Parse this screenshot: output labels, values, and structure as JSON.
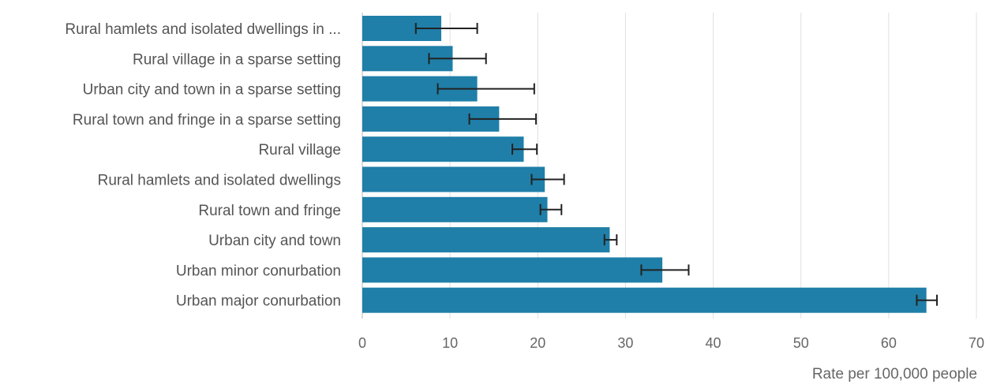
{
  "chart_data": {
    "type": "bar",
    "orientation": "horizontal",
    "categories": [
      "Rural hamlets and isolated dwellings in ...",
      "Rural village in a sparse setting",
      "Urban city and town in a sparse setting",
      "Rural town and fringe in a sparse setting",
      "Rural village",
      "Rural hamlets and isolated dwellings",
      "Rural town and fringe",
      "Urban city and town",
      "Urban minor conurbation",
      "Urban major conurbation"
    ],
    "values": [
      9.0,
      10.3,
      13.1,
      15.6,
      18.4,
      20.8,
      21.1,
      28.2,
      34.2,
      64.3
    ],
    "error_low": [
      6.1,
      7.6,
      8.6,
      12.2,
      17.1,
      19.3,
      20.3,
      27.6,
      31.8,
      63.2
    ],
    "error_high": [
      13.1,
      14.1,
      19.6,
      19.8,
      19.9,
      23.0,
      22.7,
      29.0,
      37.2,
      65.5
    ],
    "xlabel": "Rate per 100,000 people",
    "ylabel": "",
    "xlim": [
      0,
      70
    ],
    "xticks": [
      0,
      10,
      20,
      30,
      40,
      50,
      60,
      70
    ],
    "grid": true,
    "legend": "none",
    "colors": {
      "bar": "#1f7fa8",
      "error_bar": "#222222",
      "grid": "#e0e0e0",
      "axis_line": "#cfcfcf",
      "label_text": "#555555",
      "tick_text": "#666666"
    }
  }
}
